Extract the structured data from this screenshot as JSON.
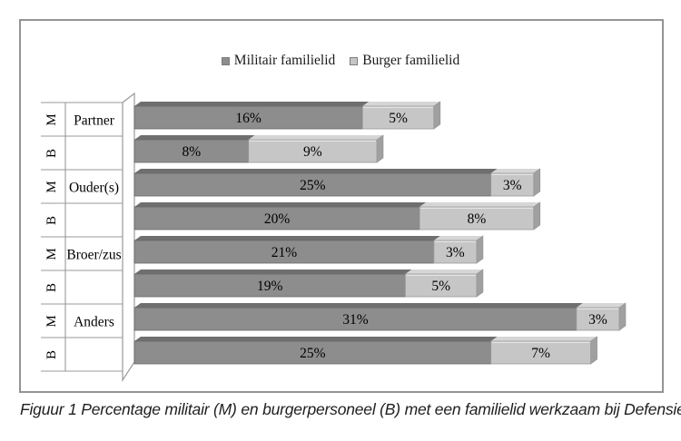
{
  "figure": {
    "caption": "Figuur 1 Percentage militair (M) en burgerpersoneel (B) met een familielid werkzaam bij Defensie"
  },
  "chart_data": {
    "type": "bar",
    "orientation": "horizontal",
    "stacked": true,
    "style": "3d",
    "legend_position": "top-center",
    "value_suffix": "%",
    "xlim": [
      0,
      34
    ],
    "grid": "category-separator-lines",
    "background": "#FFFFFF",
    "legend": [
      {
        "name": "Militair familielid",
        "color": "#8D8D8D",
        "top_color": "#6F6F6F",
        "edge_color": "#6A6A6A"
      },
      {
        "name": "Burger familielid",
        "color": "#C6C6C6",
        "top_color": "#D6D6D6",
        "edge_color": "#9A9A9A"
      }
    ],
    "series": [
      {
        "name": "Militair familielid",
        "values": [
          16,
          8,
          25,
          20,
          21,
          19,
          31,
          25
        ]
      },
      {
        "name": "Burger familielid",
        "values": [
          5,
          9,
          3,
          8,
          3,
          5,
          3,
          7
        ]
      }
    ],
    "rows": [
      {
        "group": "Partner",
        "axis": "M",
        "values": [
          16,
          5
        ]
      },
      {
        "group": "",
        "axis": "B",
        "values": [
          8,
          9
        ]
      },
      {
        "group": "Ouder(s)",
        "axis": "M",
        "values": [
          25,
          3
        ]
      },
      {
        "group": "",
        "axis": "B",
        "values": [
          20,
          8
        ]
      },
      {
        "group": "Broer/zus",
        "axis": "M",
        "values": [
          21,
          3
        ]
      },
      {
        "group": "",
        "axis": "B",
        "values": [
          19,
          5
        ]
      },
      {
        "group": "Anders",
        "axis": "M",
        "values": [
          31,
          3
        ]
      },
      {
        "group": "",
        "axis": "B",
        "values": [
          25,
          7
        ]
      }
    ],
    "end_cap_color": "#A0A0A0",
    "line_color": "#999999",
    "text_color": "#000000"
  }
}
